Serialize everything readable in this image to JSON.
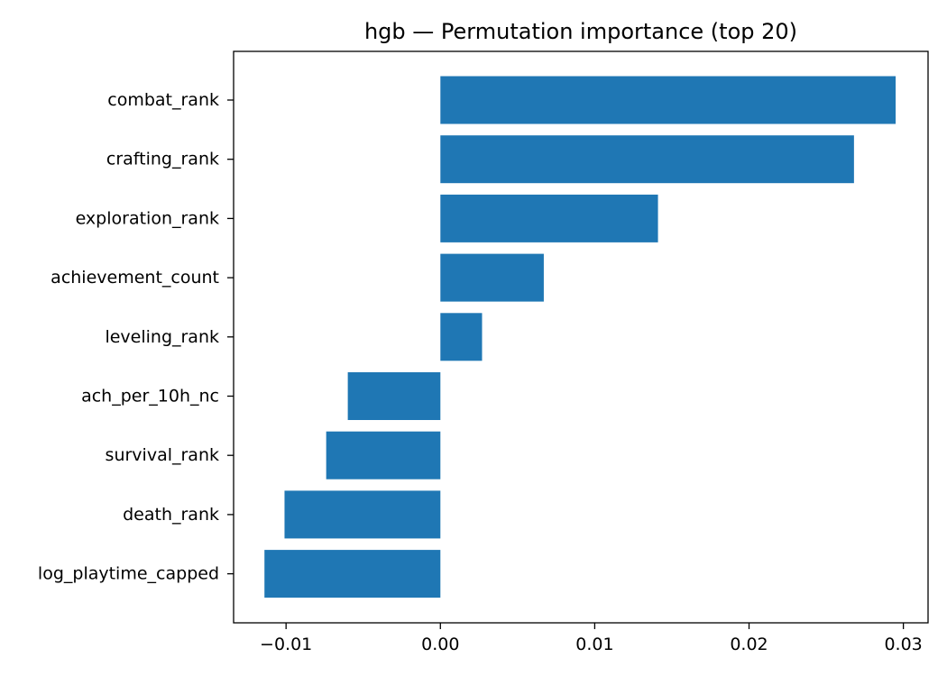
{
  "chart_data": {
    "type": "bar",
    "orientation": "horizontal",
    "title": "hgb — Permutation importance (top 20)",
    "xlabel": "",
    "ylabel": "",
    "categories": [
      "combat_rank",
      "crafting_rank",
      "exploration_rank",
      "achievement_count",
      "leveling_rank",
      "ach_per_10h_nc",
      "survival_rank",
      "death_rank",
      "log_playtime_capped"
    ],
    "values": [
      0.0295,
      0.0268,
      0.0141,
      0.0067,
      0.0027,
      -0.006,
      -0.0074,
      -0.0101,
      -0.0114
    ],
    "xlim": [
      -0.0134,
      0.0316
    ],
    "xticks": [
      -0.01,
      0.0,
      0.01,
      0.02,
      0.03
    ],
    "xtick_labels": [
      "−0.01",
      "0.00",
      "0.01",
      "0.02",
      "0.03"
    ],
    "grid": false,
    "legend": "none",
    "bar_color": "#1f77b4"
  }
}
